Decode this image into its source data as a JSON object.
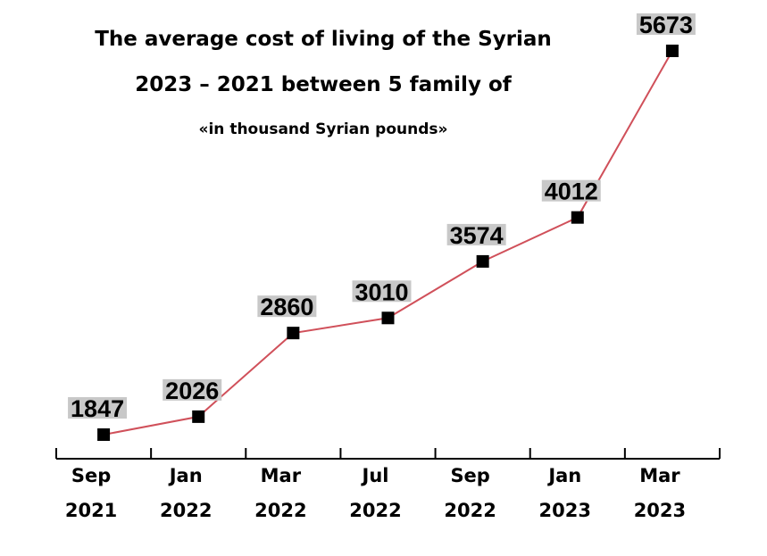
{
  "chart_data": {
    "type": "line",
    "title_lines": [
      "The average cost of living of the Syrian",
      "2023 – 2021 between 5 family of",
      "«in thousand Syrian pounds»"
    ],
    "xlabel": "",
    "ylabel": "",
    "categories": [
      [
        "Sep",
        "2021"
      ],
      [
        "Jan",
        "2022"
      ],
      [
        "Mar",
        "2022"
      ],
      [
        "Jul",
        "2022"
      ],
      [
        "Sep",
        "2022"
      ],
      [
        "Jan",
        "2023"
      ],
      [
        "Mar",
        "2023"
      ]
    ],
    "series": [
      {
        "values": [
          1847,
          2026,
          2860,
          3010,
          3574,
          4012,
          5673
        ]
      }
    ],
    "grid": false,
    "legend": "none",
    "colors": {
      "line": "#d0505a",
      "marker": "#000000",
      "label_background": "#c8c8c8"
    }
  }
}
